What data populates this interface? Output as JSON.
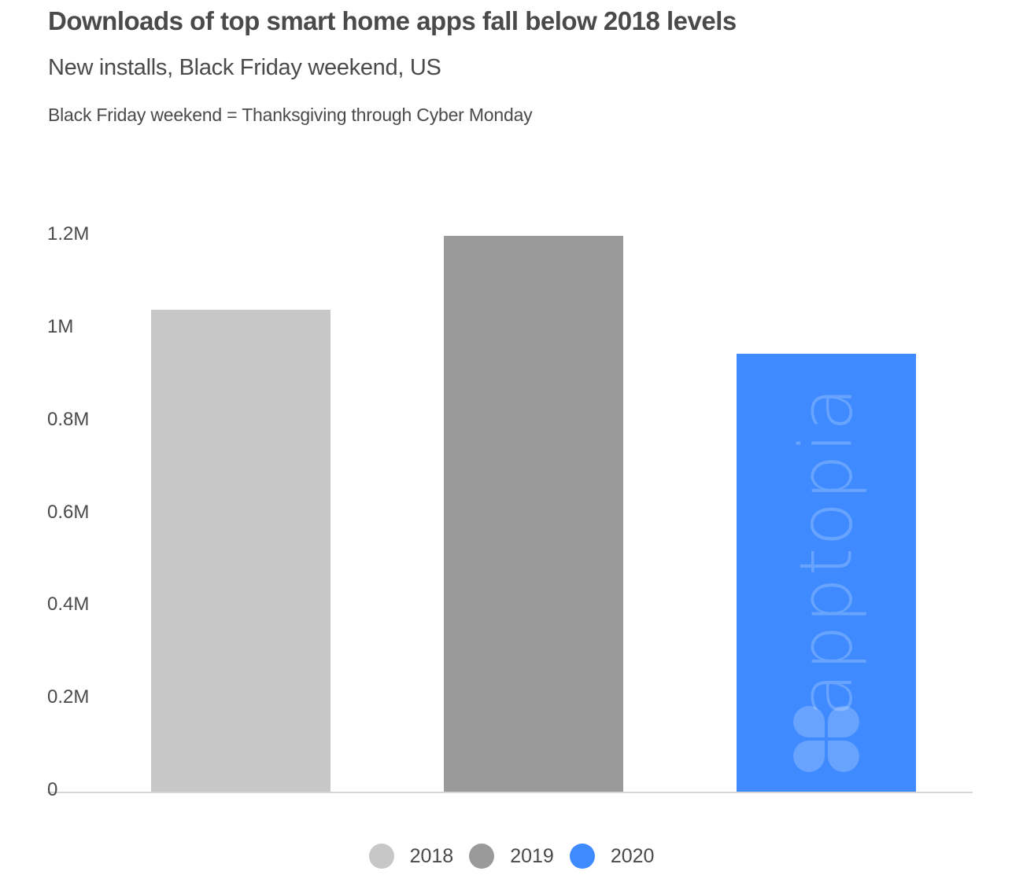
{
  "header": {
    "title": "Downloads of top smart home apps fall below 2018 levels",
    "subtitle": "New installs, Black Friday weekend, US",
    "note": "Black Friday weekend = Thanksgiving through Cyber Monday"
  },
  "axis": {
    "y_ticks": [
      "0",
      "0.2M",
      "0.4M",
      "0.6M",
      "0.8M",
      "1M",
      "1.2M"
    ]
  },
  "legend": [
    {
      "label": "2018",
      "color": "#c8c7c8"
    },
    {
      "label": "2019",
      "color": "#9a9a9a"
    },
    {
      "label": "2020",
      "color": "#3e8afe"
    }
  ],
  "watermark": {
    "text": "apptopia"
  },
  "chart_data": {
    "type": "bar",
    "title": "Downloads of top smart home apps fall below 2018 levels",
    "subtitle": "New installs, Black Friday weekend, US",
    "annotation": "Black Friday weekend = Thanksgiving through Cyber Monday",
    "categories": [
      "2018",
      "2019",
      "2020"
    ],
    "values": [
      1040000,
      1200000,
      945000
    ],
    "colors": [
      "#c8c7c8",
      "#9a9a9a",
      "#3e8afe"
    ],
    "xlabel": "",
    "ylabel": "",
    "ylim": [
      0,
      1200000
    ],
    "yticks": [
      0,
      200000,
      400000,
      600000,
      800000,
      1000000,
      1200000
    ],
    "ytick_labels": [
      "0",
      "0.2M",
      "0.4M",
      "0.6M",
      "0.8M",
      "1M",
      "1.2M"
    ],
    "grid": false,
    "legend_position": "bottom"
  }
}
